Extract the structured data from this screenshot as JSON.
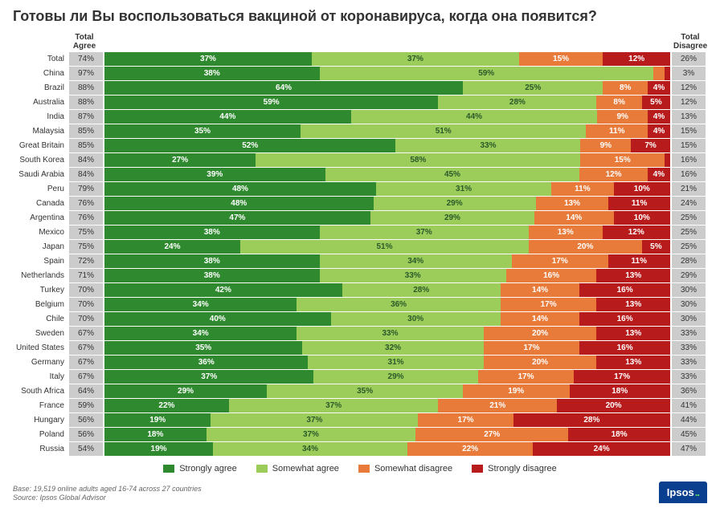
{
  "title": "Готовы ли Вы воспользоваться вакциной от коронавируса, когда она появится?",
  "headers": {
    "agree": "Total Agree",
    "disagree": "Total Disagree"
  },
  "colors": {
    "strongly_agree": "#2f8a2f",
    "somewhat_agree": "#9ccc5a",
    "somewhat_disagree": "#e87b3a",
    "strongly_disagree": "#b81b1b",
    "cell_bg": "#cccccc",
    "background": "#ffffff",
    "title_color": "#333333"
  },
  "legend": [
    {
      "key": "strongly_agree",
      "label": "Strongly agree"
    },
    {
      "key": "somewhat_agree",
      "label": "Somewhat agree"
    },
    {
      "key": "somewhat_disagree",
      "label": "Somewhat disagree"
    },
    {
      "key": "strongly_disagree",
      "label": "Strongly disagree"
    }
  ],
  "rows": [
    {
      "country": "Total",
      "agree": 74,
      "sa": 37,
      "swa": 37,
      "swd": 15,
      "sd": 12,
      "disagree": 26
    },
    {
      "country": "China",
      "agree": 97,
      "sa": 38,
      "swa": 59,
      "swd": 2,
      "sd": 1,
      "disagree": 3,
      "sd_label": "1%",
      "swd_label": "2%"
    },
    {
      "country": "Brazil",
      "agree": 88,
      "sa": 64,
      "swa": 25,
      "swd": 8,
      "sd": 4,
      "disagree": 12
    },
    {
      "country": "Australia",
      "agree": 88,
      "sa": 59,
      "swa": 28,
      "swd": 8,
      "sd": 5,
      "disagree": 12
    },
    {
      "country": "India",
      "agree": 87,
      "sa": 44,
      "swa": 44,
      "swd": 9,
      "sd": 4,
      "disagree": 13
    },
    {
      "country": "Malaysia",
      "agree": 85,
      "sa": 35,
      "swa": 51,
      "swd": 11,
      "sd": 4,
      "disagree": 15
    },
    {
      "country": "Great Britain",
      "agree": 85,
      "sa": 52,
      "swa": 33,
      "swd": 9,
      "sd": 7,
      "disagree": 15
    },
    {
      "country": "South Korea",
      "agree": 84,
      "sa": 27,
      "swa": 58,
      "swd": 15,
      "sd": 1,
      "disagree": 16,
      "sd_label": "1%"
    },
    {
      "country": "Saudi Arabia",
      "agree": 84,
      "sa": 39,
      "swa": 45,
      "swd": 12,
      "sd": 4,
      "disagree": 16
    },
    {
      "country": "Peru",
      "agree": 79,
      "sa": 48,
      "swa": 31,
      "swd": 11,
      "sd": 10,
      "disagree": 21
    },
    {
      "country": "Canada",
      "agree": 76,
      "sa": 48,
      "swa": 29,
      "swd": 13,
      "sd": 11,
      "disagree": 24
    },
    {
      "country": "Argentina",
      "agree": 76,
      "sa": 47,
      "swa": 29,
      "swd": 14,
      "sd": 10,
      "disagree": 25
    },
    {
      "country": "Mexico",
      "agree": 75,
      "sa": 38,
      "swa": 37,
      "swd": 13,
      "sd": 12,
      "disagree": 25
    },
    {
      "country": "Japan",
      "agree": 75,
      "sa": 24,
      "swa": 51,
      "swd": 20,
      "sd": 5,
      "disagree": 25
    },
    {
      "country": "Spain",
      "agree": 72,
      "sa": 38,
      "swa": 34,
      "swd": 17,
      "sd": 11,
      "disagree": 28
    },
    {
      "country": "Netherlands",
      "agree": 71,
      "sa": 38,
      "swa": 33,
      "swd": 16,
      "sd": 13,
      "disagree": 29
    },
    {
      "country": "Turkey",
      "agree": 70,
      "sa": 42,
      "swa": 28,
      "swd": 14,
      "sd": 16,
      "disagree": 30
    },
    {
      "country": "Belgium",
      "agree": 70,
      "sa": 34,
      "swa": 36,
      "swd": 17,
      "sd": 13,
      "disagree": 30
    },
    {
      "country": "Chile",
      "agree": 70,
      "sa": 40,
      "swa": 30,
      "swd": 14,
      "sd": 16,
      "disagree": 30
    },
    {
      "country": "Sweden",
      "agree": 67,
      "sa": 34,
      "swa": 33,
      "swd": 20,
      "sd": 13,
      "disagree": 33
    },
    {
      "country": "United States",
      "agree": 67,
      "sa": 35,
      "swa": 32,
      "swd": 17,
      "sd": 16,
      "disagree": 33
    },
    {
      "country": "Germany",
      "agree": 67,
      "sa": 36,
      "swa": 31,
      "swd": 20,
      "sd": 13,
      "disagree": 33
    },
    {
      "country": "Italy",
      "agree": 67,
      "sa": 37,
      "swa": 29,
      "swd": 17,
      "sd": 17,
      "disagree": 33
    },
    {
      "country": "South Africa",
      "agree": 64,
      "sa": 29,
      "swa": 35,
      "swd": 19,
      "sd": 18,
      "disagree": 36
    },
    {
      "country": "France",
      "agree": 59,
      "sa": 22,
      "swa": 37,
      "swd": 21,
      "sd": 20,
      "disagree": 41
    },
    {
      "country": "Hungary",
      "agree": 56,
      "sa": 19,
      "swa": 37,
      "swd": 17,
      "sd": 28,
      "disagree": 44
    },
    {
      "country": "Poland",
      "agree": 56,
      "sa": 18,
      "swa": 37,
      "swd": 27,
      "sd": 18,
      "disagree": 45
    },
    {
      "country": "Russia",
      "agree": 54,
      "sa": 19,
      "swa": 34,
      "swd": 22,
      "sd": 24,
      "disagree": 47
    }
  ],
  "footnote1": "Base: 19,519 online adults aged 16-74 across 27 countries",
  "footnote2": "Source: Ipsos Global Advisor",
  "logo_text": "Ipsos",
  "typography": {
    "title_fontsize": 18,
    "row_fontsize": 10,
    "legend_fontsize": 11
  }
}
